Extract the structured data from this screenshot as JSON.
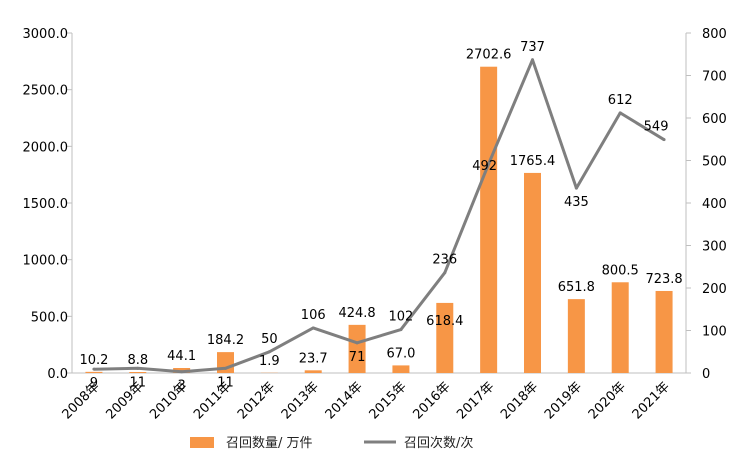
{
  "chart_data": {
    "type": "bar+line",
    "categories": [
      "2008年",
      "2009年",
      "2010年",
      "2011年",
      "2012年",
      "2013年",
      "2014年",
      "2015年",
      "2016年",
      "2017年",
      "2018年",
      "2019年",
      "2020年",
      "2021年"
    ],
    "series": [
      {
        "name": "召回数量/ 万件",
        "type": "bar",
        "axis": "left",
        "color": "#F79646",
        "values": [
          10.2,
          8.8,
          44.1,
          184.2,
          1.9,
          23.7,
          424.8,
          67.0,
          618.4,
          2702.6,
          1765.4,
          651.8,
          800.5,
          723.8
        ],
        "labels": [
          "10.2",
          "8.8",
          "44.1",
          "184.2",
          "1.9",
          "23.7",
          "424.8",
          "67.0",
          "618.4",
          "2702.6",
          "1765.4",
          "651.8",
          "800.5",
          "723.8"
        ]
      },
      {
        "name": "召回次数/次",
        "type": "line",
        "axis": "right",
        "color": "#7F7F7F",
        "values": [
          9,
          11,
          3,
          11,
          50,
          106,
          71,
          102,
          236,
          492,
          737,
          435,
          612,
          549
        ],
        "labels": [
          "9",
          "11",
          "3",
          "11",
          "50",
          "106",
          "71",
          "102",
          "236",
          "492",
          "737",
          "435",
          "612",
          "549"
        ]
      }
    ],
    "y_left": {
      "min": 0,
      "max": 3000,
      "ticks": [
        "0.0",
        "500.0",
        "1000.0",
        "1500.0",
        "2000.0",
        "2500.0",
        "3000.0"
      ]
    },
    "y_right": {
      "min": 0,
      "max": 800,
      "ticks": [
        "0",
        "100",
        "200",
        "300",
        "400",
        "500",
        "600",
        "700",
        "800"
      ]
    },
    "legend_position": "bottom",
    "title": "",
    "xlabel": "",
    "ylabel": ""
  }
}
